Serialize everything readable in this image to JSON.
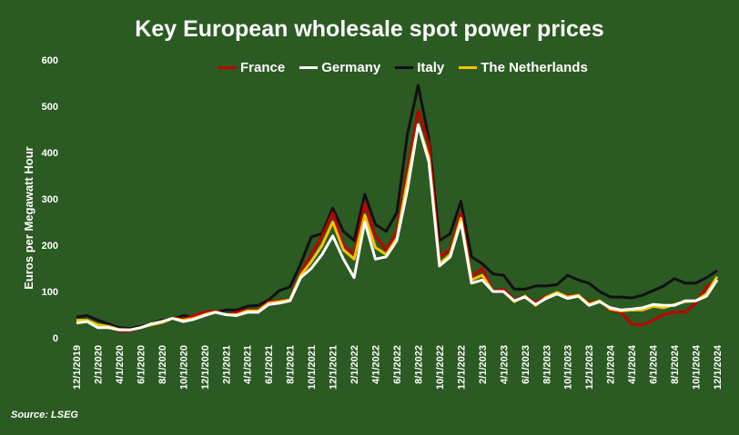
{
  "chart_data": {
    "type": "line",
    "title": "Key European wholesale spot power prices",
    "ylabel": "Euros per Megawatt Hour",
    "xlabel": "",
    "ylim": [
      0,
      600
    ],
    "yticks": [
      "0",
      "100",
      "200",
      "300",
      "400",
      "500",
      "600"
    ],
    "grid": false,
    "legend_position": "top",
    "source": "Source: LSEG",
    "x": [
      "12/1/2019",
      "1/1/2020",
      "2/1/2020",
      "3/1/2020",
      "4/1/2020",
      "5/1/2020",
      "6/1/2020",
      "7/1/2020",
      "8/1/2020",
      "9/1/2020",
      "10/1/2020",
      "11/1/2020",
      "12/1/2020",
      "1/1/2021",
      "2/1/2021",
      "3/1/2021",
      "4/1/2021",
      "5/1/2021",
      "6/1/2021",
      "7/1/2021",
      "8/1/2021",
      "9/1/2021",
      "10/1/2021",
      "11/1/2021",
      "12/1/2021",
      "1/1/2022",
      "2/1/2022",
      "3/1/2022",
      "4/1/2022",
      "5/1/2022",
      "6/1/2022",
      "7/1/2022",
      "8/1/2022",
      "9/1/2022",
      "10/1/2022",
      "11/1/2022",
      "12/1/2022",
      "1/1/2023",
      "2/1/2023",
      "3/1/2023",
      "4/1/2023",
      "5/1/2023",
      "6/1/2023",
      "7/1/2023",
      "8/1/2023",
      "9/1/2023",
      "10/1/2023",
      "11/1/2023",
      "12/1/2023",
      "1/1/2024",
      "2/1/2024",
      "3/1/2024",
      "4/1/2024",
      "5/1/2024",
      "6/1/2024",
      "7/1/2024",
      "8/1/2024",
      "9/1/2024",
      "10/1/2024",
      "11/1/2024",
      "12/1/2024"
    ],
    "xtick_labels": [
      "12/1/2019",
      "2/1/2020",
      "4/1/2020",
      "6/1/2020",
      "8/1/2020",
      "10/1/2020",
      "12/1/2020",
      "2/1/2021",
      "4/1/2021",
      "6/1/2021",
      "8/1/2021",
      "10/1/2021",
      "12/1/2021",
      "2/1/2022",
      "4/1/2022",
      "6/1/2022",
      "8/1/2022",
      "10/1/2022",
      "12/1/2022",
      "2/1/2023",
      "4/1/2023",
      "6/1/2023",
      "8/1/2023",
      "10/1/2023",
      "12/1/2023",
      "2/1/2024",
      "4/1/2024",
      "6/1/2024",
      "8/1/2024",
      "10/1/2024",
      "12/1/2024"
    ],
    "series": [
      {
        "name": "France",
        "color": "#c00000",
        "values": [
          38,
          36,
          27,
          24,
          15,
          15,
          22,
          30,
          33,
          43,
          40,
          48,
          55,
          58,
          50,
          55,
          60,
          60,
          78,
          80,
          82,
          140,
          180,
          220,
          270,
          200,
          180,
          290,
          220,
          190,
          230,
          360,
          490,
          420,
          175,
          190,
          270,
          130,
          150,
          100,
          105,
          82,
          90,
          75,
          90,
          95,
          90,
          92,
          75,
          80,
          60,
          55,
          30,
          28,
          38,
          50,
          56,
          55,
          75,
          110,
          125
        ]
      },
      {
        "name": "Germany",
        "color": "#ffffff",
        "values": [
          32,
          35,
          22,
          22,
          17,
          17,
          22,
          30,
          35,
          42,
          35,
          40,
          48,
          55,
          50,
          48,
          55,
          55,
          72,
          75,
          80,
          130,
          150,
          180,
          220,
          170,
          130,
          250,
          170,
          175,
          210,
          320,
          460,
          380,
          155,
          175,
          250,
          118,
          125,
          100,
          100,
          80,
          88,
          72,
          85,
          95,
          85,
          90,
          70,
          78,
          65,
          60,
          62,
          65,
          72,
          70,
          70,
          80,
          80,
          90,
          125
        ]
      },
      {
        "name": "Italy",
        "color": "#111111",
        "values": [
          45,
          48,
          38,
          30,
          22,
          20,
          25,
          30,
          38,
          40,
          48,
          45,
          50,
          55,
          60,
          60,
          68,
          70,
          82,
          102,
          110,
          160,
          218,
          225,
          280,
          230,
          210,
          310,
          245,
          230,
          270,
          440,
          545,
          430,
          210,
          225,
          295,
          175,
          160,
          138,
          135,
          105,
          105,
          112,
          112,
          115,
          135,
          125,
          118,
          100,
          88,
          88,
          86,
          92,
          102,
          112,
          128,
          118,
          118,
          130,
          145
        ]
      },
      {
        "name": "The Netherlands",
        "color": "#f5c400",
        "values": [
          38,
          38,
          28,
          25,
          18,
          17,
          22,
          28,
          33,
          42,
          38,
          42,
          50,
          56,
          50,
          50,
          58,
          58,
          75,
          78,
          82,
          135,
          165,
          200,
          250,
          190,
          170,
          265,
          195,
          180,
          215,
          340,
          460,
          390,
          160,
          180,
          258,
          125,
          135,
          100,
          100,
          78,
          90,
          70,
          88,
          98,
          88,
          92,
          72,
          80,
          62,
          58,
          60,
          60,
          68,
          65,
          72,
          78,
          80,
          95,
          132
        ]
      }
    ]
  }
}
